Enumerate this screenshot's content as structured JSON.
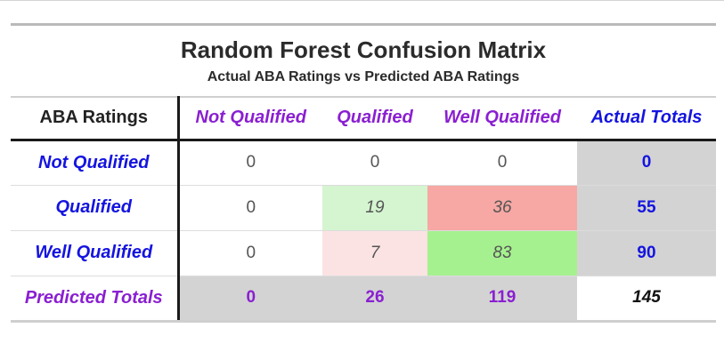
{
  "chart_data": {
    "type": "table",
    "title": "Random Forest Confusion Matrix",
    "subtitle": "Actual ABA Ratings vs Predicted ABA Ratings",
    "corner_label": "ABA Ratings",
    "columns": [
      "Not Qualified",
      "Qualified",
      "Well Qualified",
      "Actual Totals"
    ],
    "rows": [
      {
        "label": "Not Qualified",
        "values": [
          "0",
          "0",
          "0"
        ],
        "total": "0",
        "colors": [
          "#ffffff",
          "#ffffff",
          "#ffffff"
        ]
      },
      {
        "label": "Qualified",
        "values": [
          "0",
          "19",
          "36"
        ],
        "total": "55",
        "colors": [
          "#ffffff",
          "#d4f5cf",
          "#f7a8a4"
        ]
      },
      {
        "label": "Well Qualified",
        "values": [
          "0",
          "7",
          "83"
        ],
        "total": "90",
        "colors": [
          "#ffffff",
          "#fbe3e3",
          "#a6f18f"
        ]
      }
    ],
    "predicted_totals": {
      "label": "Predicted Totals",
      "values": [
        "0",
        "26",
        "119"
      ],
      "grand_total": "145"
    }
  }
}
